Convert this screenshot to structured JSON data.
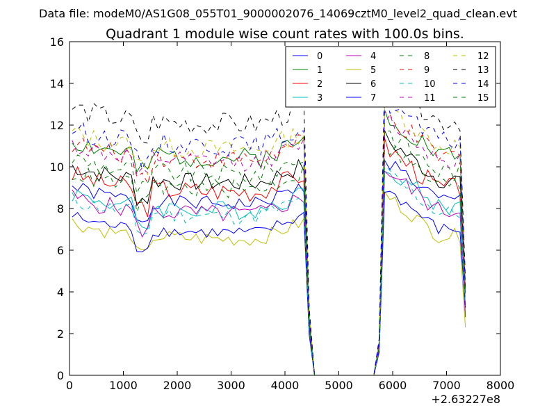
{
  "chart_data": {
    "type": "line",
    "suptitle": "Data file: modeM0/AS1G08_055T01_9000002076_14069cztM0_level2_quad_clean.evt",
    "title": "Quadrant 1 module wise count rates with 100.0s bins.",
    "xlabel": "",
    "ylabel": "",
    "x_offset_label": "+2.63227e8",
    "xlim": [
      0,
      8000
    ],
    "ylim": [
      0,
      16
    ],
    "xticks": [
      "0",
      "1000",
      "2000",
      "3000",
      "4000",
      "5000",
      "6000",
      "7000",
      "8000"
    ],
    "yticks": [
      "0",
      "2",
      "4",
      "6",
      "8",
      "10",
      "12",
      "14",
      "16"
    ],
    "grid": false,
    "legend_position": "top-right",
    "legend_columns": 4,
    "series": [
      {
        "name": "0",
        "color": "#0000ff",
        "dash": "solid",
        "base": 8.2,
        "amp": 0.35,
        "seed": 1
      },
      {
        "name": "1",
        "color": "#008000",
        "dash": "solid",
        "base": 10.4,
        "amp": 0.5,
        "seed": 2
      },
      {
        "name": "2",
        "color": "#ff0000",
        "dash": "solid",
        "base": 8.8,
        "amp": 0.5,
        "seed": 3
      },
      {
        "name": "3",
        "color": "#00bfbf",
        "dash": "solid",
        "base": 7.9,
        "amp": 0.45,
        "seed": 4
      },
      {
        "name": "4",
        "color": "#bf00bf",
        "dash": "solid",
        "base": 7.7,
        "amp": 0.45,
        "seed": 5
      },
      {
        "name": "5",
        "color": "#bfbf00",
        "dash": "solid",
        "base": 6.5,
        "amp": 0.35,
        "seed": 6
      },
      {
        "name": "6",
        "color": "#000000",
        "dash": "solid",
        "base": 9.2,
        "amp": 0.45,
        "seed": 7
      },
      {
        "name": "7",
        "color": "#0000ff",
        "dash": "solid",
        "base": 6.8,
        "amp": 0.3,
        "seed": 8
      },
      {
        "name": "8",
        "color": "#008000",
        "dash": "dashed",
        "base": 9.6,
        "amp": 0.5,
        "seed": 9
      },
      {
        "name": "9",
        "color": "#ff0000",
        "dash": "dashed",
        "base": 10.3,
        "amp": 0.5,
        "seed": 10
      },
      {
        "name": "10",
        "color": "#00bfbf",
        "dash": "dashed",
        "base": 7.6,
        "amp": 0.4,
        "seed": 11
      },
      {
        "name": "11",
        "color": "#bf00bf",
        "dash": "dashed",
        "base": 10.2,
        "amp": 0.45,
        "seed": 12
      },
      {
        "name": "12",
        "color": "#bfbf00",
        "dash": "dashed",
        "base": 10.8,
        "amp": 0.5,
        "seed": 13
      },
      {
        "name": "13",
        "color": "#000000",
        "dash": "dashed",
        "base": 12.0,
        "amp": 0.55,
        "seed": 14
      },
      {
        "name": "14",
        "color": "#0000ff",
        "dash": "dashed",
        "base": 11.0,
        "amp": 0.5,
        "seed": 15
      },
      {
        "name": "15",
        "color": "#008000",
        "dash": "dashed",
        "base": 8.9,
        "amp": 0.45,
        "seed": 16
      }
    ],
    "time_shape": {
      "bin_seconds": 100,
      "start": 0,
      "rise1_end": 4350,
      "fall_to_zero": 4550,
      "zero_end": 5650,
      "rise2_peak": 5850,
      "end": 7350
    }
  }
}
